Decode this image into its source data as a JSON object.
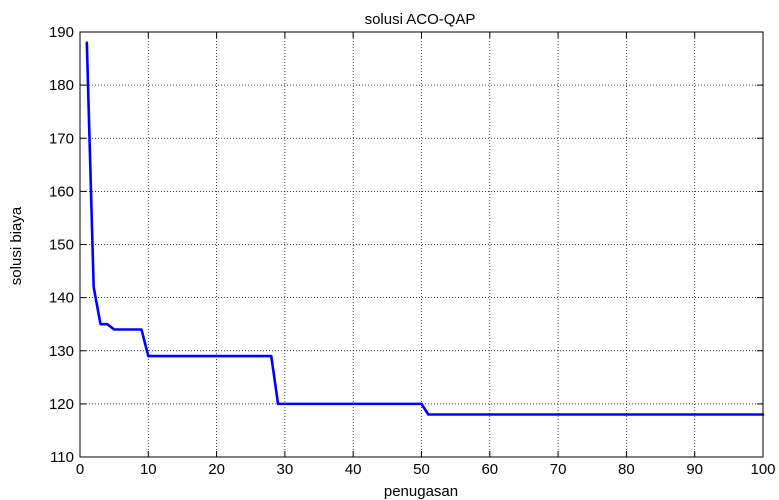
{
  "chart_data": {
    "type": "line",
    "title": "solusi ACO-QAP",
    "xlabel": "penugasan",
    "ylabel": "solusi biaya",
    "xlim": [
      0,
      100
    ],
    "ylim": [
      110,
      190
    ],
    "xticks": [
      0,
      10,
      20,
      30,
      40,
      50,
      60,
      70,
      80,
      90,
      100
    ],
    "yticks": [
      110,
      120,
      130,
      140,
      150,
      160,
      170,
      180,
      190
    ],
    "grid": true,
    "series": [
      {
        "color": "#0000ff",
        "x": [
          1,
          2,
          3,
          4,
          5,
          6,
          7,
          8,
          9,
          10,
          11,
          12,
          13,
          14,
          15,
          16,
          17,
          18,
          19,
          20,
          21,
          22,
          23,
          24,
          25,
          26,
          27,
          28,
          29,
          30,
          31,
          32,
          33,
          34,
          35,
          36,
          37,
          38,
          39,
          40,
          41,
          42,
          43,
          44,
          45,
          46,
          47,
          48,
          49,
          50,
          51,
          52,
          53,
          54,
          55,
          56,
          57,
          58,
          59,
          60,
          61,
          62,
          63,
          64,
          65,
          66,
          67,
          68,
          69,
          70,
          71,
          72,
          73,
          74,
          75,
          76,
          77,
          78,
          79,
          80,
          81,
          82,
          83,
          84,
          85,
          86,
          87,
          88,
          89,
          90,
          91,
          92,
          93,
          94,
          95,
          96,
          97,
          98,
          99,
          100
        ],
        "y": [
          188,
          142,
          135,
          135,
          134,
          134,
          134,
          134,
          134,
          129,
          129,
          129,
          129,
          129,
          129,
          129,
          129,
          129,
          129,
          129,
          129,
          129,
          129,
          129,
          129,
          129,
          129,
          129,
          120,
          120,
          120,
          120,
          120,
          120,
          120,
          120,
          120,
          120,
          120,
          120,
          120,
          120,
          120,
          120,
          120,
          120,
          120,
          120,
          120,
          120,
          118,
          118,
          118,
          118,
          118,
          118,
          118,
          118,
          118,
          118,
          118,
          118,
          118,
          118,
          118,
          118,
          118,
          118,
          118,
          118,
          118,
          118,
          118,
          118,
          118,
          118,
          118,
          118,
          118,
          118,
          118,
          118,
          118,
          118,
          118,
          118,
          118,
          118,
          118,
          118,
          118,
          118,
          118,
          118,
          118,
          118,
          118,
          118,
          118,
          118
        ]
      }
    ]
  }
}
